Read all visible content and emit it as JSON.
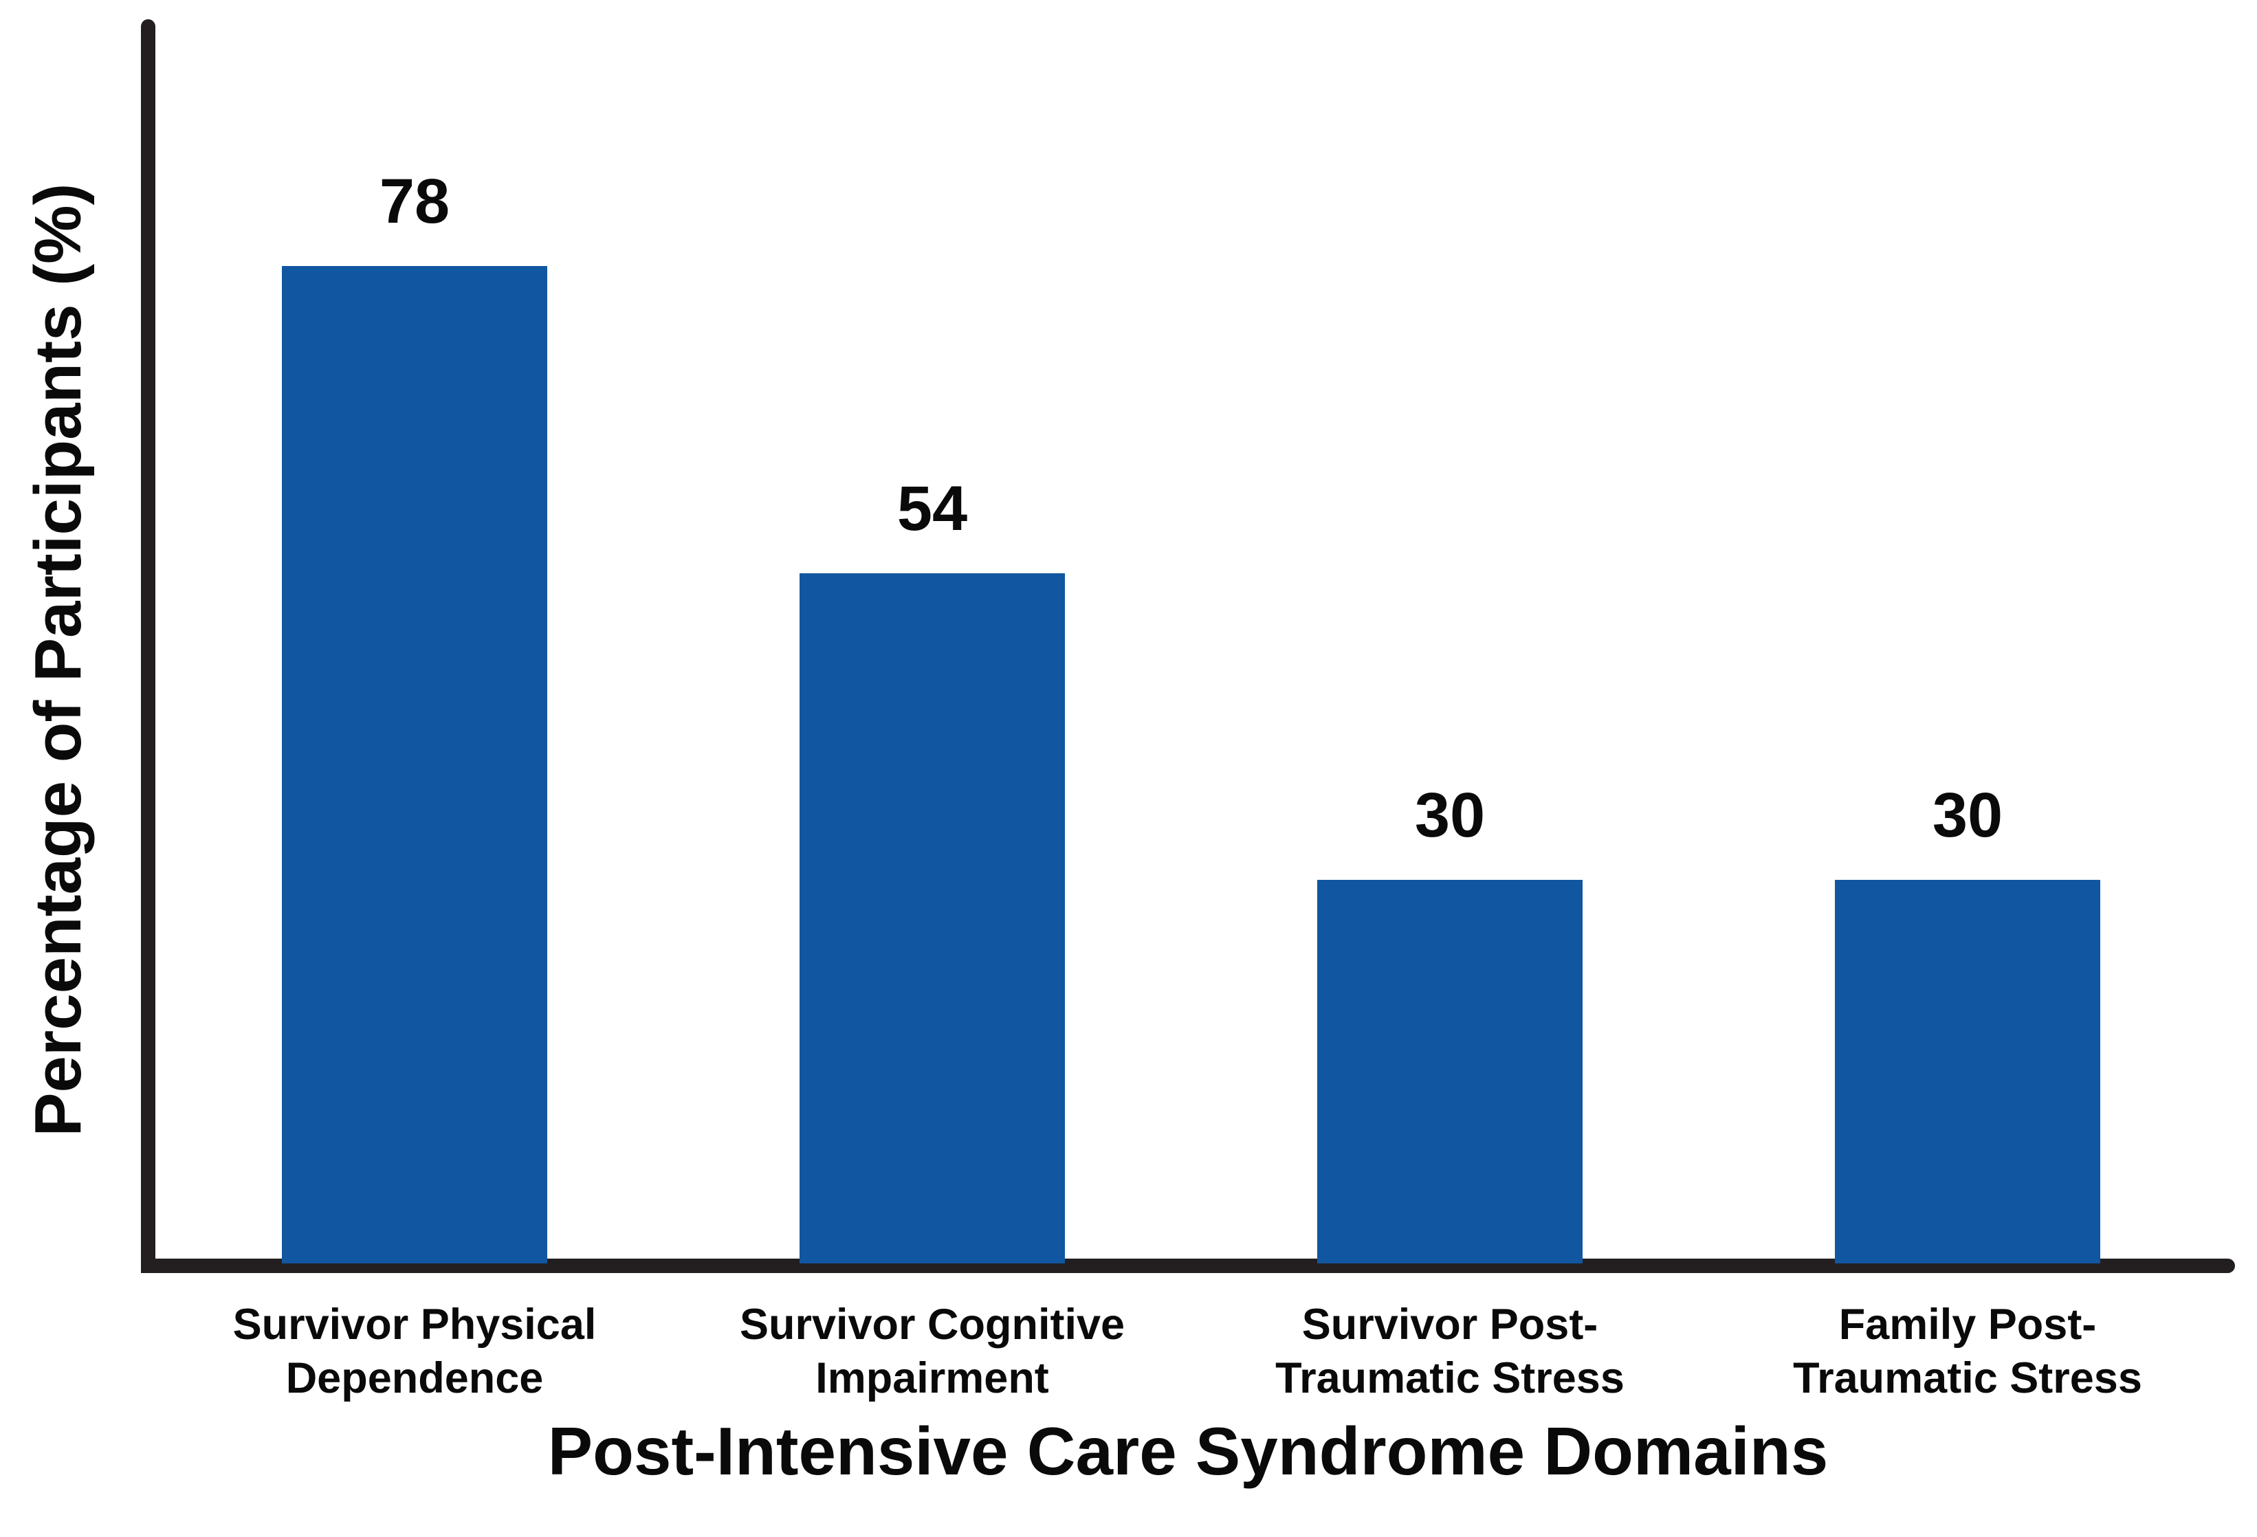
{
  "chart_data": {
    "type": "bar",
    "categories": [
      "Survivor Physical\nDependence",
      "Survivor Cognitive\nImpairment",
      "Survivor Post-\nTraumatic Stress",
      "Family Post-\nTraumatic Stress"
    ],
    "values": [
      78,
      54,
      30,
      30
    ],
    "value_labels": [
      "78",
      "54",
      "30",
      "30"
    ],
    "title": "",
    "xlabel": "Post-Intensive Care Syndrome Domains",
    "ylabel": "Percentage of Participants (%)",
    "ylim": [
      0,
      97
    ],
    "grid": false,
    "legend": "none",
    "axis_tick_labels": "none",
    "bar_color": "#1156A0",
    "axis_color": "#231F20",
    "text_color": "#0A0A0A",
    "background_color": "#FFFFFF"
  }
}
